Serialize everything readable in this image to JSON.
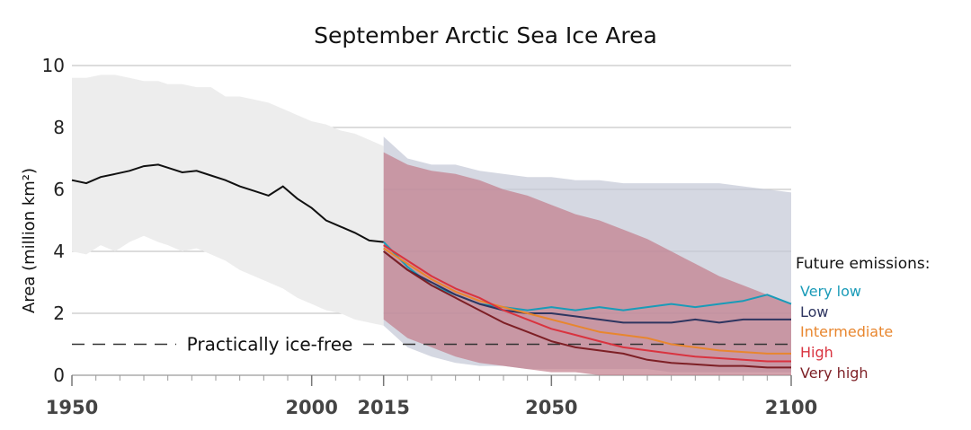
{
  "chart_data": {
    "type": "line",
    "title": "September Arctic Sea Ice Area",
    "ylabel": "Area (million km²)",
    "xlabel": "",
    "xlim": [
      1950,
      2100
    ],
    "ylim": [
      0,
      10
    ],
    "x_ticks": [
      "1950",
      "2000",
      "2015",
      "2050",
      "2100"
    ],
    "x_tick_values": [
      1950,
      2000,
      2015,
      2050,
      2100
    ],
    "y_ticks": [
      "0",
      "2",
      "4",
      "6",
      "8",
      "10"
    ],
    "y_tick_values": [
      0,
      2,
      4,
      6,
      8,
      10
    ],
    "grid": true,
    "annotation": {
      "text": "Practically ice-free",
      "y": 1
    },
    "legend": {
      "title": "Future emissions:",
      "placement": "right",
      "items": [
        {
          "label": "Very low",
          "color": "#1a9bb8"
        },
        {
          "label": "Low",
          "color": "#2e3560"
        },
        {
          "label": "Intermediate",
          "color": "#e8862e"
        },
        {
          "label": "High",
          "color": "#d9333f"
        },
        {
          "label": "Very high",
          "color": "#7d1f25"
        }
      ]
    },
    "historical": {
      "color": "#111111",
      "band_color": "#ededed",
      "x": [
        1950,
        1953,
        1956,
        1959,
        1962,
        1965,
        1968,
        1970,
        1973,
        1976,
        1979,
        1982,
        1985,
        1988,
        1991,
        1994,
        1997,
        2000,
        2003,
        2006,
        2009,
        2012,
        2015
      ],
      "y": [
        6.3,
        6.2,
        6.4,
        6.5,
        6.6,
        6.75,
        6.8,
        6.7,
        6.55,
        6.6,
        6.45,
        6.3,
        6.1,
        5.95,
        5.8,
        6.1,
        5.7,
        5.4,
        5.0,
        4.8,
        4.6,
        4.35,
        4.3
      ],
      "band_upper": [
        9.6,
        9.6,
        9.7,
        9.7,
        9.6,
        9.5,
        9.5,
        9.4,
        9.4,
        9.3,
        9.3,
        9.0,
        9.0,
        8.9,
        8.8,
        8.6,
        8.4,
        8.2,
        8.1,
        7.9,
        7.8,
        7.6,
        7.4
      ],
      "band_lower": [
        4.0,
        3.9,
        4.2,
        4.0,
        4.3,
        4.5,
        4.3,
        4.2,
        4.0,
        4.1,
        3.9,
        3.7,
        3.4,
        3.2,
        3.0,
        2.8,
        2.5,
        2.3,
        2.1,
        2.0,
        1.8,
        1.7,
        1.6
      ]
    },
    "projection_bands": [
      {
        "name": "Low",
        "color": "#c3c8d6",
        "x": [
          2015,
          2020,
          2025,
          2030,
          2035,
          2040,
          2045,
          2050,
          2055,
          2060,
          2065,
          2070,
          2075,
          2080,
          2085,
          2090,
          2095,
          2100
        ],
        "upper": [
          7.7,
          7.0,
          6.8,
          6.8,
          6.6,
          6.5,
          6.4,
          6.4,
          6.3,
          6.3,
          6.2,
          6.2,
          6.2,
          6.2,
          6.2,
          6.1,
          6.0,
          5.9
        ],
        "lower": [
          1.6,
          0.9,
          0.6,
          0.4,
          0.3,
          0.3,
          0.2,
          0.2,
          0.2,
          0.2,
          0.2,
          0.2,
          0.1,
          0.1,
          0.1,
          0.1,
          0.1,
          0.1
        ]
      },
      {
        "name": "Very high",
        "color": "#c27c8a",
        "x": [
          2015,
          2020,
          2025,
          2030,
          2035,
          2040,
          2045,
          2050,
          2055,
          2060,
          2065,
          2070,
          2075,
          2080,
          2085,
          2090,
          2095,
          2100
        ],
        "upper": [
          7.2,
          6.8,
          6.6,
          6.5,
          6.3,
          6.0,
          5.8,
          5.5,
          5.2,
          5.0,
          4.7,
          4.4,
          4.0,
          3.6,
          3.2,
          2.9,
          2.6,
          2.3
        ],
        "lower": [
          1.8,
          1.2,
          0.9,
          0.6,
          0.4,
          0.3,
          0.2,
          0.1,
          0.1,
          0.0,
          0.0,
          0.0,
          0.0,
          0.0,
          0.0,
          0.0,
          0.0,
          0.0
        ]
      }
    ],
    "series": [
      {
        "name": "Very low",
        "color": "#1a9bb8",
        "x": [
          2015,
          2020,
          2025,
          2030,
          2035,
          2040,
          2045,
          2050,
          2055,
          2060,
          2065,
          2070,
          2075,
          2080,
          2085,
          2090,
          2095,
          2100
        ],
        "y": [
          4.3,
          3.5,
          2.9,
          2.6,
          2.3,
          2.2,
          2.1,
          2.2,
          2.1,
          2.2,
          2.1,
          2.2,
          2.3,
          2.2,
          2.3,
          2.4,
          2.6,
          2.3
        ]
      },
      {
        "name": "Low",
        "color": "#2e3560",
        "x": [
          2015,
          2020,
          2025,
          2030,
          2035,
          2040,
          2045,
          2050,
          2055,
          2060,
          2065,
          2070,
          2075,
          2080,
          2085,
          2090,
          2095,
          2100
        ],
        "y": [
          4.0,
          3.4,
          3.0,
          2.6,
          2.3,
          2.1,
          2.0,
          2.0,
          1.9,
          1.8,
          1.7,
          1.7,
          1.7,
          1.8,
          1.7,
          1.8,
          1.8,
          1.8
        ]
      },
      {
        "name": "Intermediate",
        "color": "#e8862e",
        "x": [
          2015,
          2020,
          2025,
          2030,
          2035,
          2040,
          2045,
          2050,
          2055,
          2060,
          2065,
          2070,
          2075,
          2080,
          2085,
          2090,
          2095,
          2100
        ],
        "y": [
          4.1,
          3.6,
          3.1,
          2.7,
          2.4,
          2.2,
          2.0,
          1.8,
          1.6,
          1.4,
          1.3,
          1.2,
          1.0,
          0.9,
          0.8,
          0.75,
          0.7,
          0.7
        ]
      },
      {
        "name": "High",
        "color": "#d9333f",
        "x": [
          2015,
          2020,
          2025,
          2030,
          2035,
          2040,
          2045,
          2050,
          2055,
          2060,
          2065,
          2070,
          2075,
          2080,
          2085,
          2090,
          2095,
          2100
        ],
        "y": [
          4.2,
          3.7,
          3.2,
          2.8,
          2.5,
          2.1,
          1.8,
          1.5,
          1.3,
          1.1,
          0.9,
          0.8,
          0.7,
          0.6,
          0.55,
          0.5,
          0.45,
          0.45
        ]
      },
      {
        "name": "Very high",
        "color": "#7d1f25",
        "x": [
          2015,
          2020,
          2025,
          2030,
          2035,
          2040,
          2045,
          2050,
          2055,
          2060,
          2065,
          2070,
          2075,
          2080,
          2085,
          2090,
          2095,
          2100
        ],
        "y": [
          4.0,
          3.4,
          2.9,
          2.5,
          2.1,
          1.7,
          1.4,
          1.1,
          0.9,
          0.8,
          0.7,
          0.5,
          0.4,
          0.35,
          0.3,
          0.3,
          0.25,
          0.25
        ]
      }
    ]
  }
}
